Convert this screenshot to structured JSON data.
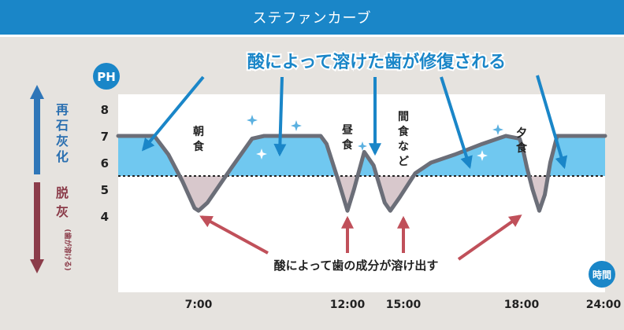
{
  "header": {
    "title": "ステファンカーブ"
  },
  "labels": {
    "ph_badge": "PH",
    "time_badge": "時間",
    "remineral": [
      "再",
      "石",
      "灰",
      "化"
    ],
    "demineral": [
      "脱",
      "灰"
    ],
    "demineral_note": "(歯が溶ける)",
    "top_annotation": "酸によって溶けた歯が修復される",
    "bottom_annotation": "酸によって歯の成分が溶け出す",
    "meals": [
      {
        "name": "朝食",
        "chars": [
          "朝",
          "食"
        ]
      },
      {
        "name": "昼食",
        "chars": [
          "昼",
          "食"
        ]
      },
      {
        "name": "間食など",
        "chars": [
          "間",
          "食",
          "な",
          "ど"
        ]
      },
      {
        "name": "夕食",
        "chars": [
          "夕",
          "食"
        ]
      }
    ]
  },
  "colors": {
    "header": "#1a86c8",
    "remineral_fill": "#70c8f0",
    "demineral_fill": "#d8c8cc",
    "curve": "#6b6e78",
    "blue_text": "#2a6fb0",
    "red_text": "#8a3a48",
    "red_arrow": "#c0505a",
    "annotation_blue": "#1a86c8"
  },
  "chart_data": {
    "type": "line",
    "title": "",
    "xlabel": "時間",
    "ylabel": "PH",
    "x_ticks": [
      "7:00",
      "12:00",
      "15:00",
      "18:00",
      "24:00"
    ],
    "x_tick_hours": [
      7,
      12,
      15,
      18,
      24
    ],
    "y_ticks": [
      8,
      7,
      6,
      5,
      4
    ],
    "ylim": [
      3,
      8.5
    ],
    "xlim": [
      3.0,
      24.2
    ],
    "critical_ph": 5.5,
    "series": [
      {
        "name": "",
        "points": [
          [
            3.0,
            7.0
          ],
          [
            4.8,
            7.0
          ],
          [
            5.5,
            6.3
          ],
          [
            6.2,
            5.3
          ],
          [
            6.8,
            4.3
          ],
          [
            7.0,
            4.2
          ],
          [
            7.3,
            4.5
          ],
          [
            8.1,
            5.8
          ],
          [
            8.8,
            6.9
          ],
          [
            9.2,
            7.0
          ],
          [
            11.1,
            7.0
          ],
          [
            11.3,
            6.7
          ],
          [
            11.7,
            5.3
          ],
          [
            12.0,
            4.2
          ],
          [
            12.35,
            5.0
          ],
          [
            12.9,
            6.4
          ],
          [
            13.4,
            5.9
          ],
          [
            14.0,
            4.5
          ],
          [
            14.3,
            4.2
          ],
          [
            14.8,
            4.7
          ],
          [
            15.3,
            5.6
          ],
          [
            15.7,
            6.0
          ],
          [
            16.3,
            6.3
          ],
          [
            17.0,
            6.7
          ],
          [
            17.6,
            7.0
          ],
          [
            17.95,
            6.9
          ],
          [
            18.1,
            6.5
          ],
          [
            18.4,
            5.8
          ],
          [
            18.8,
            5.0
          ],
          [
            19.3,
            4.2
          ],
          [
            19.7,
            4.8
          ],
          [
            20.1,
            6.0
          ],
          [
            20.6,
            7.0
          ],
          [
            24.2,
            7.0
          ]
        ]
      }
    ],
    "meal_times": [
      7,
      12,
      15,
      18
    ]
  }
}
